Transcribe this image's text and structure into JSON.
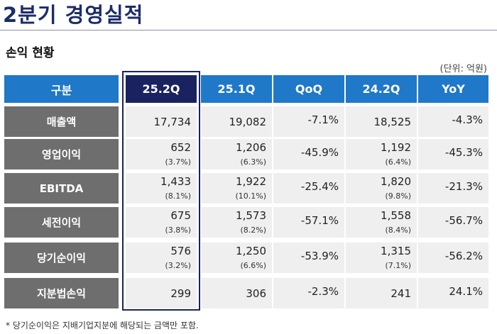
{
  "title": "2분기 경영실적",
  "section_title": "손익 현황",
  "unit": "(단위: 억원)",
  "columns": [
    "구분",
    "25.2Q",
    "25.1Q",
    "QoQ",
    "24.2Q",
    "YoY"
  ],
  "rows": [
    {
      "label": "매출액",
      "q252": "17,734",
      "q252_pct": "",
      "q251": "19,082",
      "q251_pct": "",
      "qoq": "-7.1%",
      "q242": "18,525",
      "q242_pct": "",
      "yoy": "-4.3%"
    },
    {
      "label": "영업이익",
      "q252": "652",
      "q252_pct": "(3.7%)",
      "q251": "1,206",
      "q251_pct": "(6.3%)",
      "qoq": "-45.9%",
      "q242": "1,192",
      "q242_pct": "(6.4%)",
      "yoy": "-45.3%"
    },
    {
      "label": "EBITDA",
      "q252": "1,433",
      "q252_pct": "(8.1%)",
      "q251": "1,922",
      "q251_pct": "(10.1%)",
      "qoq": "-25.4%",
      "q242": "1,820",
      "q242_pct": "(9.8%)",
      "yoy": "-21.3%"
    },
    {
      "label": "세전이익",
      "q252": "675",
      "q252_pct": "(3.8%)",
      "q251": "1,573",
      "q251_pct": "(8.2%)",
      "qoq": "-57.1%",
      "q242": "1,558",
      "q242_pct": "(8.4%)",
      "yoy": "-56.7%"
    },
    {
      "label": "당기순이익",
      "q252": "576",
      "q252_pct": "(3.2%)",
      "q251": "1,250",
      "q251_pct": "(6.6%)",
      "qoq": "-53.9%",
      "q242": "1,315",
      "q242_pct": "(7.1%)",
      "yoy": "-56.2%"
    },
    {
      "label": "지분법손익",
      "q252": "299",
      "q252_pct": "",
      "q251": "306",
      "q251_pct": "",
      "qoq": "-2.3%",
      "q242": "241",
      "q242_pct": "",
      "yoy": "24.1%"
    }
  ],
  "footnote": "* 당기순이익은 지배기업지분에 해당되는 금액만 포함.",
  "colors": {
    "title": "#1d2c6b",
    "header_blue": "#1f78c8",
    "header_highlight": "#1a2360",
    "row_label_bg": "#6e6e6e",
    "cell_bg": "#efefef"
  }
}
